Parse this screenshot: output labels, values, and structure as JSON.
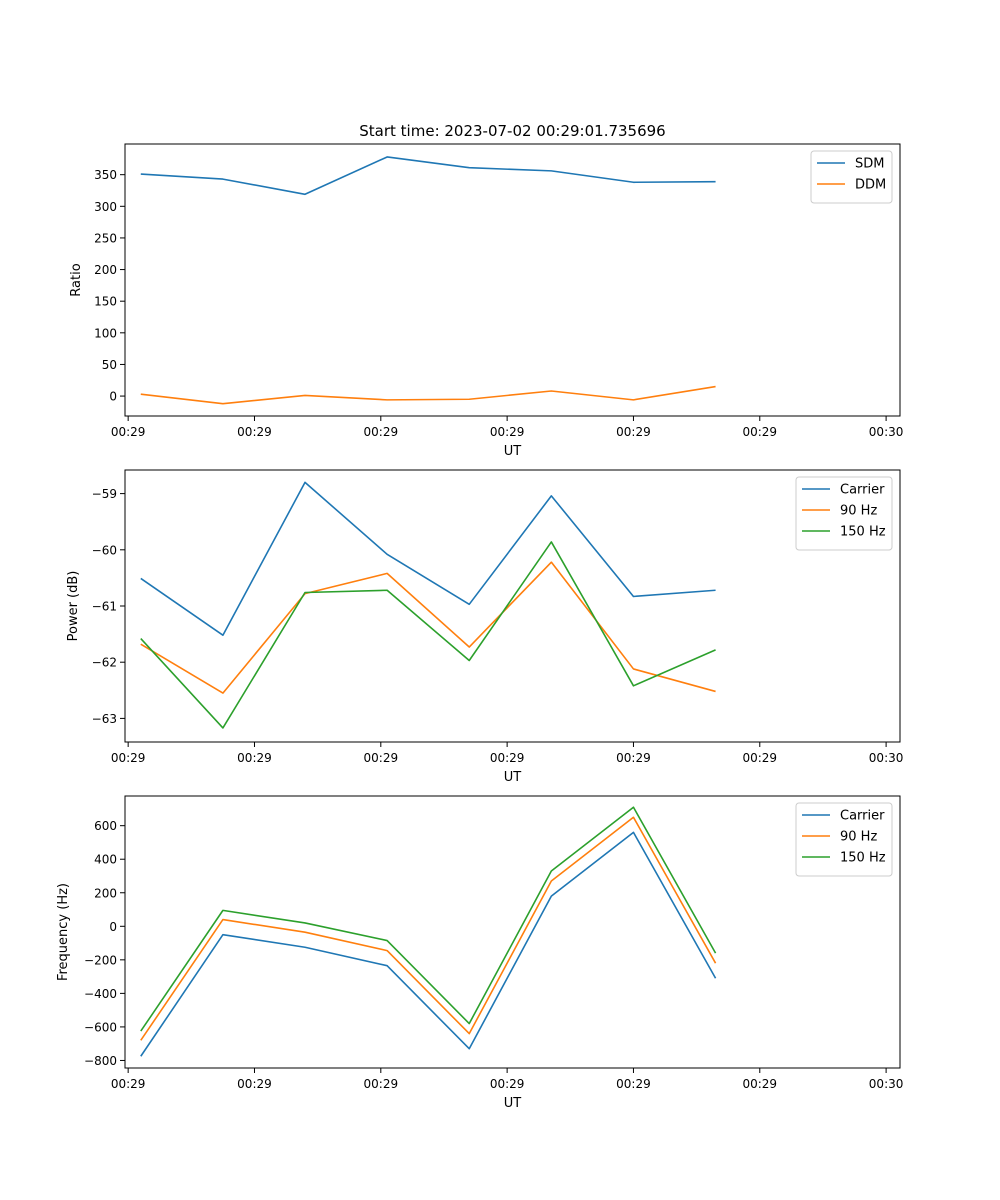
{
  "figure_title": "Start time: 2023-07-02 00:29:01.735696",
  "chart_data": [
    {
      "type": "line",
      "title": "Start time: 2023-07-02 00:29:01.735696",
      "xlabel": "UT",
      "ylabel": "Ratio",
      "x_tick_labels": [
        "00:29",
        "00:29",
        "00:29",
        "00:29",
        "00:29",
        "00:29",
        "00:30"
      ],
      "x": [
        1.1,
        1.75,
        2.4,
        3.05,
        3.7,
        4.35,
        5.0,
        5.65
      ],
      "xlim": [
        0.975,
        7.11
      ],
      "ylim": [
        -31.5,
        398.5
      ],
      "y_ticks": [
        0,
        50,
        100,
        150,
        200,
        250,
        300,
        350
      ],
      "y_tick_labels": [
        "0",
        "50",
        "100",
        "150",
        "200",
        "250",
        "300",
        "350"
      ],
      "legend": "top-right",
      "series": [
        {
          "name": "SDM",
          "color": "#1f77b4",
          "values": [
            351,
            343,
            319,
            378,
            361,
            356,
            338,
            339
          ]
        },
        {
          "name": "DDM",
          "color": "#ff7f0e",
          "values": [
            3,
            -12,
            1,
            -6,
            -5,
            8,
            -6,
            15
          ]
        }
      ]
    },
    {
      "type": "line",
      "title": "",
      "xlabel": "UT",
      "ylabel": "Power (dB)",
      "x_tick_labels": [
        "00:29",
        "00:29",
        "00:29",
        "00:29",
        "00:29",
        "00:29",
        "00:30"
      ],
      "x": [
        1.1,
        1.75,
        2.4,
        3.05,
        3.7,
        4.35,
        5.0,
        5.65
      ],
      "xlim": [
        0.975,
        7.11
      ],
      "ylim": [
        -63.42,
        -58.58
      ],
      "y_ticks": [
        -63,
        -62,
        -61,
        -60,
        -59
      ],
      "y_tick_labels": [
        "−63",
        "−62",
        "−61",
        "−60",
        "−59"
      ],
      "legend": "top-right",
      "series": [
        {
          "name": "Carrier",
          "color": "#1f77b4",
          "values": [
            -60.51,
            -61.52,
            -58.8,
            -60.08,
            -60.97,
            -59.04,
            -60.83,
            -60.72
          ]
        },
        {
          "name": "90 Hz",
          "color": "#ff7f0e",
          "values": [
            -61.68,
            -62.55,
            -60.78,
            -60.42,
            -61.73,
            -60.22,
            -62.12,
            -62.52
          ]
        },
        {
          "name": "150 Hz",
          "color": "#2ca02c",
          "values": [
            -61.58,
            -63.17,
            -60.76,
            -60.72,
            -61.97,
            -59.86,
            -62.42,
            -61.78
          ]
        }
      ]
    },
    {
      "type": "line",
      "title": "",
      "xlabel": "UT",
      "ylabel": "Frequency (Hz)",
      "x_tick_labels": [
        "00:29",
        "00:29",
        "00:29",
        "00:29",
        "00:29",
        "00:29",
        "00:30"
      ],
      "x": [
        1.1,
        1.75,
        2.4,
        3.05,
        3.7,
        4.35,
        5.0,
        5.65
      ],
      "xlim": [
        0.975,
        7.11
      ],
      "ylim": [
        -845,
        777
      ],
      "y_ticks": [
        -800,
        -600,
        -400,
        -200,
        0,
        200,
        400,
        600
      ],
      "y_tick_labels": [
        "−800",
        "−600",
        "−400",
        "−200",
        "0",
        "200",
        "400",
        "600"
      ],
      "legend": "top-right",
      "series": [
        {
          "name": "Carrier",
          "color": "#1f77b4",
          "values": [
            -775,
            -50,
            -125,
            -235,
            -730,
            180,
            560,
            -310
          ]
        },
        {
          "name": "90 Hz",
          "color": "#ff7f0e",
          "values": [
            -680,
            40,
            -35,
            -145,
            -640,
            270,
            650,
            -220
          ]
        },
        {
          "name": "150 Hz",
          "color": "#2ca02c",
          "values": [
            -625,
            95,
            20,
            -85,
            -580,
            330,
            710,
            -160
          ]
        }
      ]
    }
  ]
}
